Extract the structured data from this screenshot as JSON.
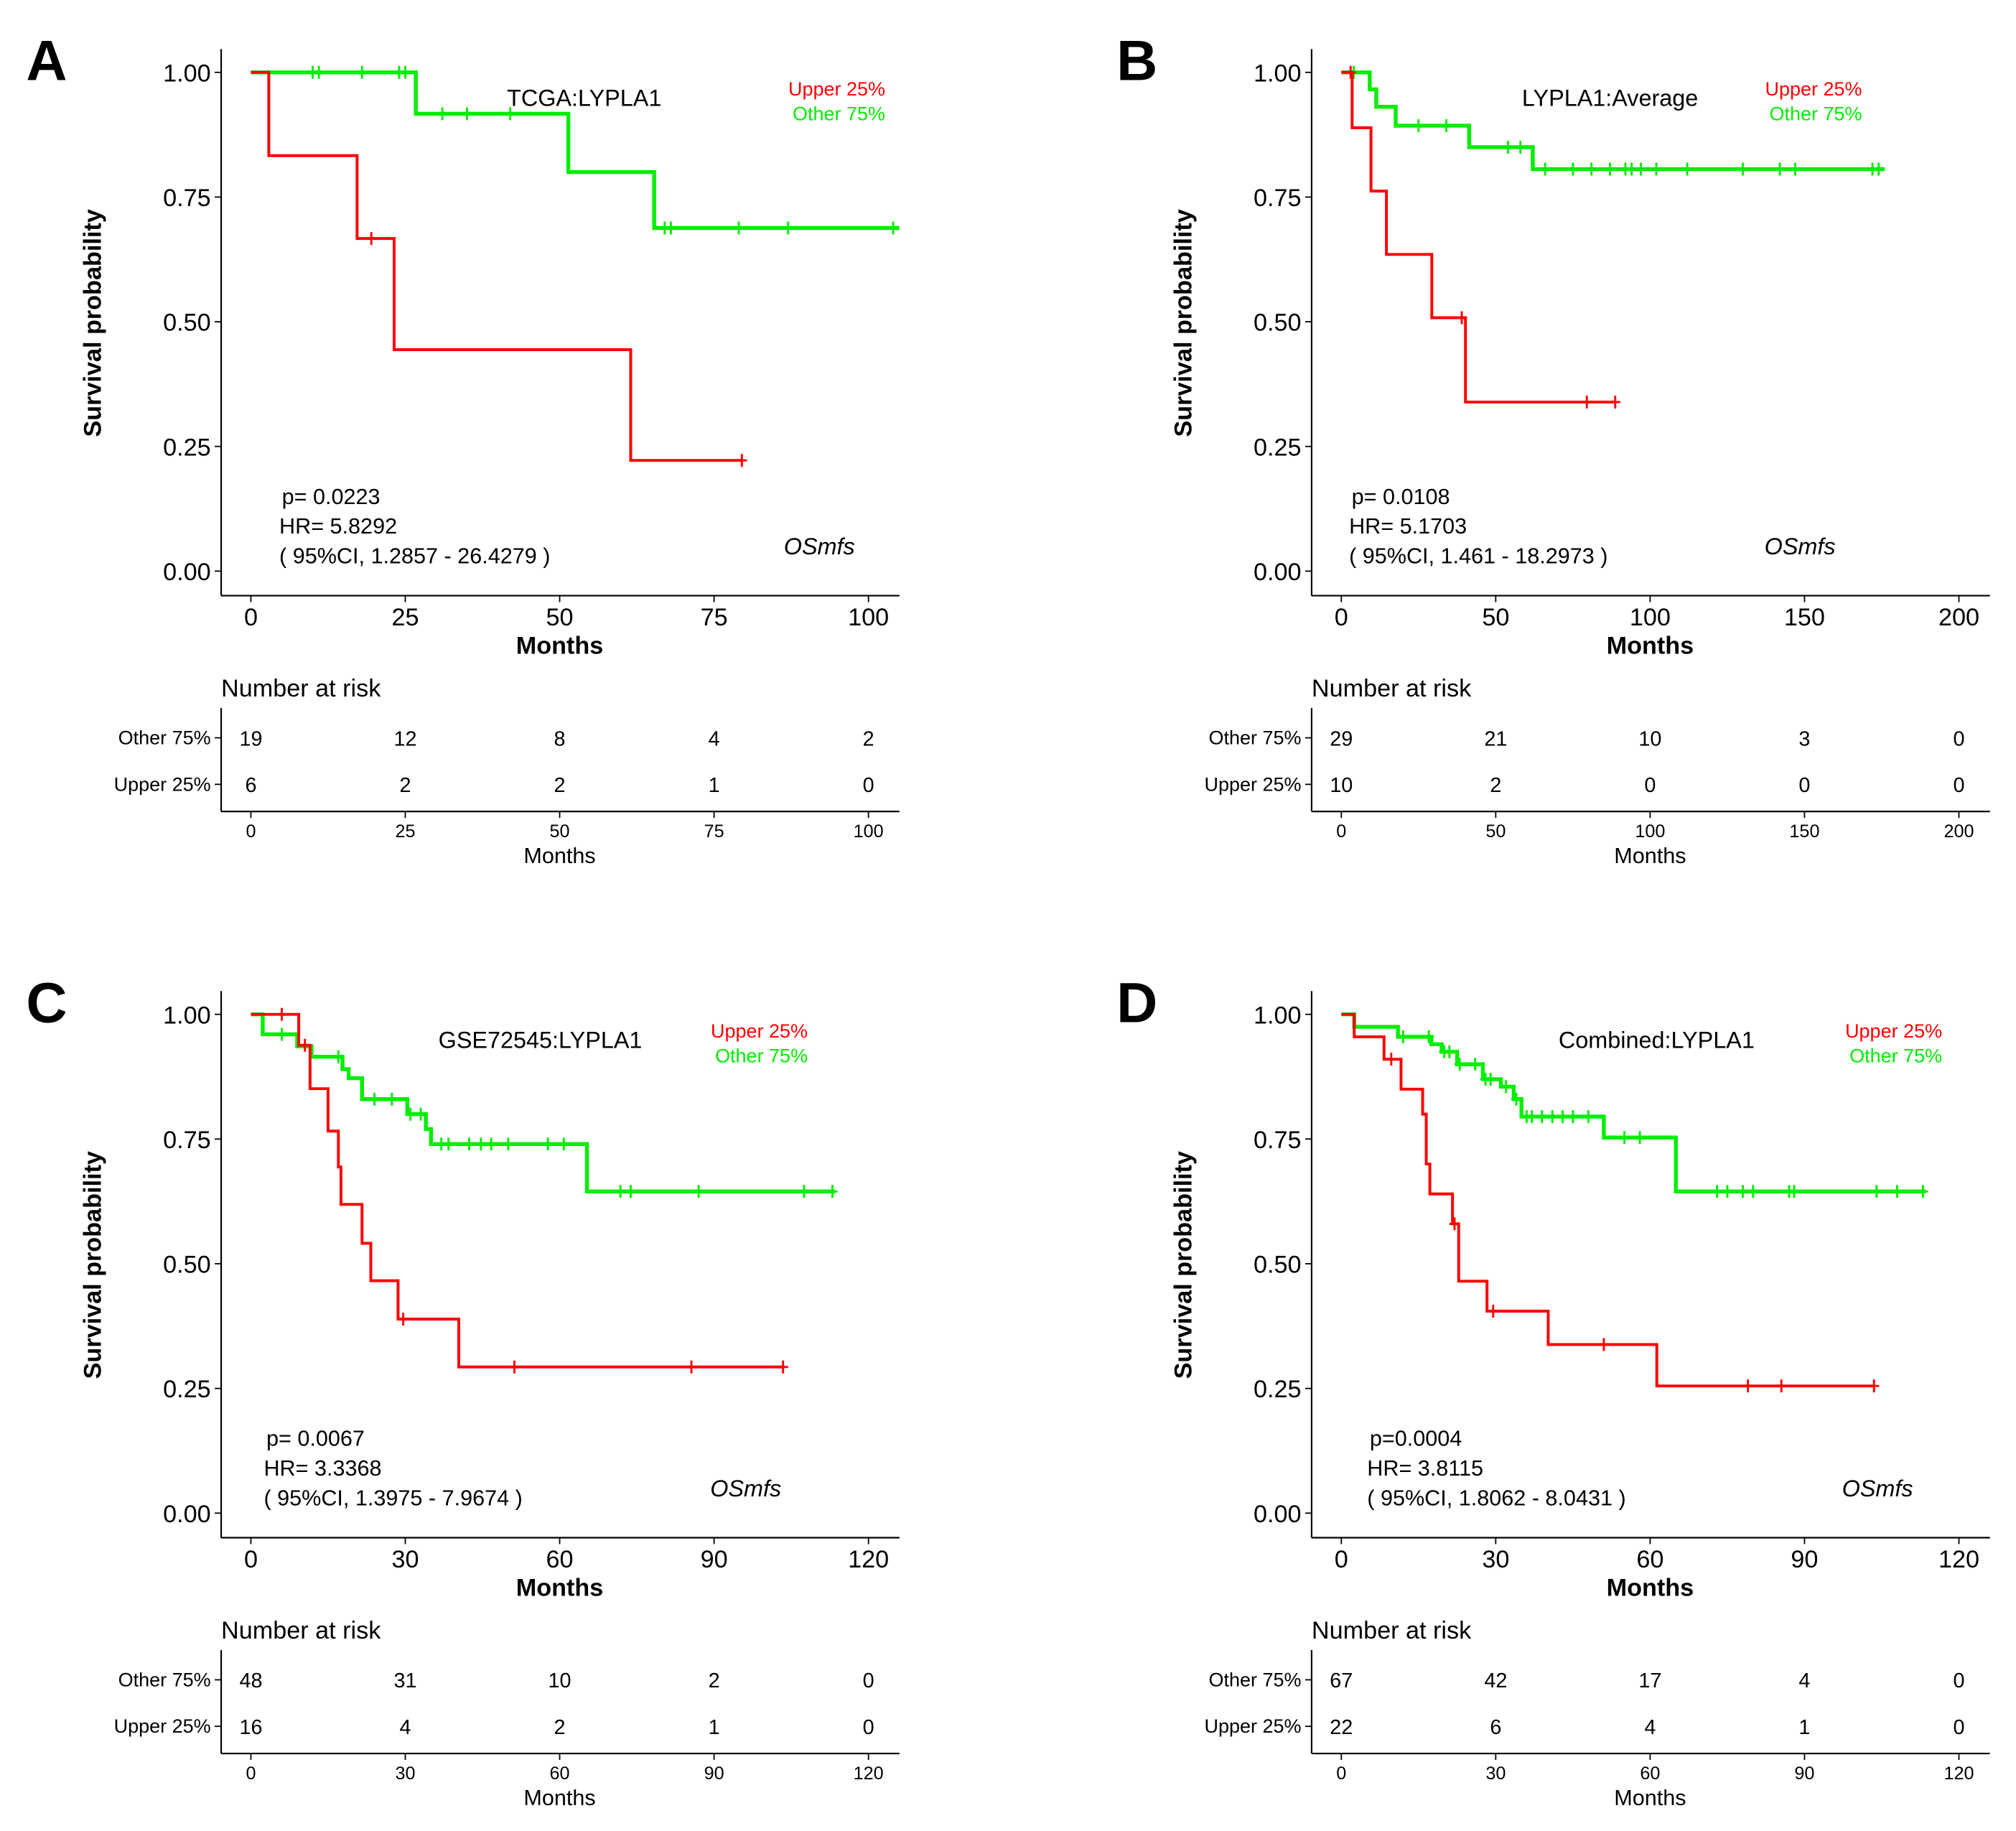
{
  "colors": {
    "upper": "#ff0000",
    "other": "#00ee00"
  },
  "common": {
    "ylabel": "Survival probability",
    "xlabel": "Months",
    "risk_title": "Number at risk",
    "legend_upper": "Upper 25%",
    "legend_other": "Other  75%",
    "row_other": "Other  75%",
    "row_upper": "Upper 25%",
    "endpoint": "OSmfs",
    "yticks": [
      "0.00",
      "0.25",
      "0.50",
      "0.75",
      "1.00"
    ]
  },
  "chart_data": [
    {
      "type": "line",
      "panel": "A",
      "title": "TCGA:LYPLA1",
      "xlim": [
        0,
        100
      ],
      "xticks": [
        "0",
        "25",
        "50",
        "75",
        "100"
      ],
      "ylim": [
        0,
        1
      ],
      "stats": [
        "p= 0.0223",
        "HR= 5.8292",
        "( 95%CI, 1.2857 - 26.4279 )"
      ],
      "risk": {
        "other": [
          "19",
          "12",
          "8",
          "4",
          "2"
        ],
        "upper": [
          "6",
          "2",
          "2",
          "1",
          "0"
        ]
      },
      "series": [
        {
          "name": "Other 75%",
          "key": "other",
          "steps": [
            [
              0,
              1
            ],
            [
              26.7,
              0.917
            ],
            [
              51.4,
              0.8
            ],
            [
              65.3,
              0.688
            ]
          ],
          "end": 105,
          "censor": [
            10,
            11,
            18,
            24,
            25,
            31,
            35,
            42,
            67,
            68,
            79,
            87,
            104
          ]
        },
        {
          "name": "Upper 25%",
          "key": "upper",
          "steps": [
            [
              0,
              1
            ],
            [
              2.9,
              0.833
            ],
            [
              17.2,
              0.667
            ],
            [
              23.2,
              0.444
            ],
            [
              61.5,
              0.222
            ]
          ],
          "end": 79.7,
          "censor": [
            19.5,
            79.5
          ]
        }
      ]
    },
    {
      "type": "line",
      "panel": "B",
      "title": "LYPLA1:Average",
      "xlim": [
        0,
        200
      ],
      "xticks": [
        "0",
        "50",
        "100",
        "150",
        "200"
      ],
      "ylim": [
        0,
        1
      ],
      "stats": [
        "p= 0.0108",
        "HR= 5.1703",
        "( 95%CI, 1.461 - 18.2973 )"
      ],
      "risk": {
        "other": [
          "29",
          "21",
          "10",
          "3",
          "0"
        ],
        "upper": [
          "10",
          "2",
          "0",
          "0",
          "0"
        ]
      },
      "series": [
        {
          "name": "Other 75%",
          "key": "other",
          "steps": [
            [
              0,
              1
            ],
            [
              9.2,
              0.966
            ],
            [
              11.3,
              0.931
            ],
            [
              17.6,
              0.893
            ],
            [
              41.4,
              0.85
            ],
            [
              62,
              0.806
            ]
          ],
          "end": 176,
          "censor": [
            4,
            25,
            34,
            54,
            58,
            66,
            75,
            81,
            87,
            92,
            94,
            97,
            102,
            112,
            130,
            142,
            147,
            172,
            174
          ]
        },
        {
          "name": "Upper 25%",
          "key": "upper",
          "steps": [
            [
              0,
              1
            ],
            [
              3.5,
              0.889
            ],
            [
              9.6,
              0.762
            ],
            [
              14.6,
              0.635
            ],
            [
              29.3,
              0.508
            ],
            [
              40.2,
              0.339
            ]
          ],
          "end": 88.7,
          "censor": [
            3,
            39,
            79.5,
            88.7
          ]
        }
      ]
    },
    {
      "type": "line",
      "panel": "C",
      "title": "GSE72545:LYPLA1",
      "xlim": [
        0,
        120
      ],
      "xticks": [
        "0",
        "30",
        "60",
        "90",
        "120"
      ],
      "ylim": [
        0,
        1
      ],
      "stats": [
        "p= 0.0067",
        "HR= 3.3368",
        "( 95%CI, 1.3975 - 7.9674 )"
      ],
      "risk": {
        "other": [
          "48",
          "31",
          "10",
          "2",
          "0"
        ],
        "upper": [
          "16",
          "4",
          "2",
          "1",
          "0"
        ]
      },
      "series": [
        {
          "name": "Other 75%",
          "key": "other",
          "steps": [
            [
              0,
              1
            ],
            [
              2.3,
              0.96
            ],
            [
              9,
              0.936
            ],
            [
              11.8,
              0.915
            ],
            [
              17.8,
              0.89
            ],
            [
              19,
              0.872
            ],
            [
              21.6,
              0.83
            ],
            [
              30.4,
              0.8
            ],
            [
              34,
              0.77
            ],
            [
              35,
              0.74
            ],
            [
              65.3,
              0.645
            ]
          ],
          "end": 113.5,
          "censor": [
            6,
            17,
            24,
            27.4,
            31,
            33,
            37,
            38.4,
            42.4,
            44.7,
            46.7,
            50,
            57.7,
            60.8,
            71.8,
            73.8,
            87,
            107.5,
            113
          ]
        },
        {
          "name": "Upper 25%",
          "key": "upper",
          "steps": [
            [
              0,
              1
            ],
            [
              9.3,
              0.938
            ],
            [
              11.5,
              0.851
            ],
            [
              15,
              0.766
            ],
            [
              17,
              0.694
            ],
            [
              17.5,
              0.619
            ],
            [
              21.6,
              0.541
            ],
            [
              23.3,
              0.466
            ],
            [
              28.6,
              0.389
            ],
            [
              40.4,
              0.293
            ]
          ],
          "end": 103.7,
          "censor": [
            6,
            10.5,
            29.6,
            51.2,
            85.6,
            103.4
          ]
        }
      ]
    },
    {
      "type": "line",
      "panel": "D",
      "title": "Combined:LYPLA1",
      "xlim": [
        0,
        120
      ],
      "xticks": [
        "0",
        "30",
        "60",
        "90",
        "120"
      ],
      "ylim": [
        0,
        1
      ],
      "stats": [
        "p=0.0004",
        "HR= 3.8115",
        "( 95%CI, 1.8062 - 8.0431 )"
      ],
      "risk": {
        "other": [
          "67",
          "42",
          "17",
          "4",
          "0"
        ],
        "upper": [
          "22",
          "6",
          "4",
          "1",
          "0"
        ]
      },
      "series": [
        {
          "name": "Other 75%",
          "key": "other",
          "steps": [
            [
              0,
              1
            ],
            [
              2.5,
              0.975
            ],
            [
              11,
              0.955
            ],
            [
              17.5,
              0.94
            ],
            [
              19.5,
              0.925
            ],
            [
              22.5,
              0.9
            ],
            [
              27.5,
              0.87
            ],
            [
              31,
              0.855
            ],
            [
              33.5,
              0.83
            ],
            [
              35,
              0.795
            ],
            [
              51,
              0.753
            ],
            [
              65,
              0.645
            ]
          ],
          "end": 113.5,
          "censor": [
            12,
            17,
            20,
            21,
            23,
            26,
            28,
            29,
            32,
            34,
            36,
            37,
            39,
            41,
            43,
            45,
            48,
            55,
            58,
            73,
            75,
            78,
            80,
            87,
            88,
            104,
            108,
            113
          ]
        },
        {
          "name": "Upper 25%",
          "key": "upper",
          "steps": [
            [
              0,
              1
            ],
            [
              2.5,
              0.955
            ],
            [
              8.3,
              0.91
            ],
            [
              11.6,
              0.85
            ],
            [
              15.8,
              0.8
            ],
            [
              16.5,
              0.7
            ],
            [
              17.2,
              0.64
            ],
            [
              21.6,
              0.58
            ],
            [
              22.8,
              0.465
            ],
            [
              28.3,
              0.405
            ],
            [
              40.2,
              0.338
            ],
            [
              61.3,
              0.255
            ]
          ],
          "end": 103.5,
          "censor": [
            9.7,
            22,
            29.5,
            51,
            79,
            85.5,
            103.5
          ]
        }
      ]
    }
  ]
}
